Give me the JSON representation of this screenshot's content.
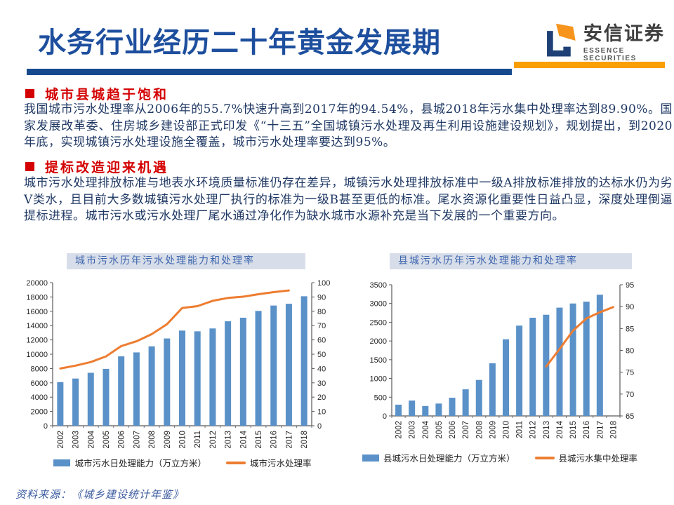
{
  "header": {
    "title": "水务行业经历二十年黄金发展期",
    "logo": {
      "cn": "安信证券",
      "en": "ESSENCE SECURITIES"
    },
    "colors": {
      "title_blue": "#1E4F9E",
      "rule_navy": "#174A8C",
      "rule_orange": "#FA9E05"
    }
  },
  "sections": [
    {
      "heading": "城市县城趋于饱和",
      "body": "我国城市污水处理率从2006年的55.7%快速升高到2017年的94.54%，县城2018年污水集中处理率达到89.90%。国家发展改革委、住房城乡建设部正式印发《“十三五”全国城镇污水处理及再生利用设施建设规划》，规划提出，到2020年底，实现城镇污水处理设施全覆盖，城市污水处理率要达到95%。"
    },
    {
      "heading": "提标改造迎来机遇",
      "body": "城市污水处理排放标准与地表水环境质量标准仍存在差异，城镇污水处理排放标准中一级A排放标准排放的达标水仍为劣Ⅴ类水，且目前大多数城镇污水处理厂执行的标准为一级B甚至更低的标准。尾水资源化重要性日益凸显，深度处理倒逼提标进程。城市污水或污水处理厂尾水通过净化作为缺水城市水源补充是当下发展的一个重要方向。"
    }
  ],
  "chart_data": [
    {
      "type": "bar+line",
      "title": "城市污水历年污水处理能力和处理率",
      "categories": [
        "2002",
        "2003",
        "2004",
        "2005",
        "2006",
        "2007",
        "2008",
        "2009",
        "2010",
        "2011",
        "2012",
        "2013",
        "2014",
        "2015",
        "2016",
        "2017",
        "2018"
      ],
      "series": [
        {
          "name": "城市污水日处理能力（万立方米）",
          "type": "bar",
          "axis": "left",
          "color": "#5A91C8",
          "values": [
            6100,
            6600,
            7400,
            7950,
            9700,
            10250,
            11100,
            12200,
            13300,
            13200,
            13600,
            14600,
            15100,
            16050,
            16800,
            17050,
            18100
          ]
        },
        {
          "name": "城市污水处理率",
          "type": "line",
          "axis": "right",
          "color": "#ED7D31",
          "values": [
            40,
            42,
            44.5,
            48.5,
            55.7,
            59,
            64,
            71,
            82.3,
            83.6,
            87.3,
            89.3,
            90.2,
            91.9,
            93.4,
            94.54,
            null
          ]
        }
      ],
      "left_axis": {
        "min": 0,
        "max": 20000,
        "step": 2000
      },
      "right_axis": {
        "min": 0,
        "max": 100,
        "step": 10
      },
      "grid": false,
      "legend_position": "bottom"
    },
    {
      "type": "bar+line",
      "title": "县城污水历年污水处理能力和处理率",
      "categories": [
        "2002",
        "2003",
        "2004",
        "2005",
        "2006",
        "2007",
        "2008",
        "2009",
        "2010",
        "2011",
        "2012",
        "2013",
        "2014",
        "2015",
        "2016",
        "2017",
        "2018"
      ],
      "series": [
        {
          "name": "县城污水日处理能力（万立方米）",
          "type": "bar",
          "axis": "left",
          "color": "#5A91C8",
          "values": [
            300,
            410,
            265,
            330,
            485,
            710,
            960,
            1405,
            2045,
            2410,
            2620,
            2700,
            2890,
            3000,
            3050,
            3235,
            null
          ]
        },
        {
          "name": "县城污水集中处理率",
          "type": "line",
          "axis": "right",
          "color": "#ED7D31",
          "values": [
            null,
            null,
            null,
            null,
            null,
            null,
            null,
            null,
            null,
            null,
            null,
            76.3,
            80.3,
            84.5,
            87.3,
            88.7,
            89.9
          ]
        }
      ],
      "left_axis": {
        "min": 0,
        "max": 3500,
        "step": 500
      },
      "right_axis": {
        "min": 65,
        "max": 95,
        "step": 5
      },
      "grid": false,
      "legend_position": "bottom"
    }
  ],
  "footer": {
    "source": "资料来源：《城乡建设统计年鉴》"
  }
}
